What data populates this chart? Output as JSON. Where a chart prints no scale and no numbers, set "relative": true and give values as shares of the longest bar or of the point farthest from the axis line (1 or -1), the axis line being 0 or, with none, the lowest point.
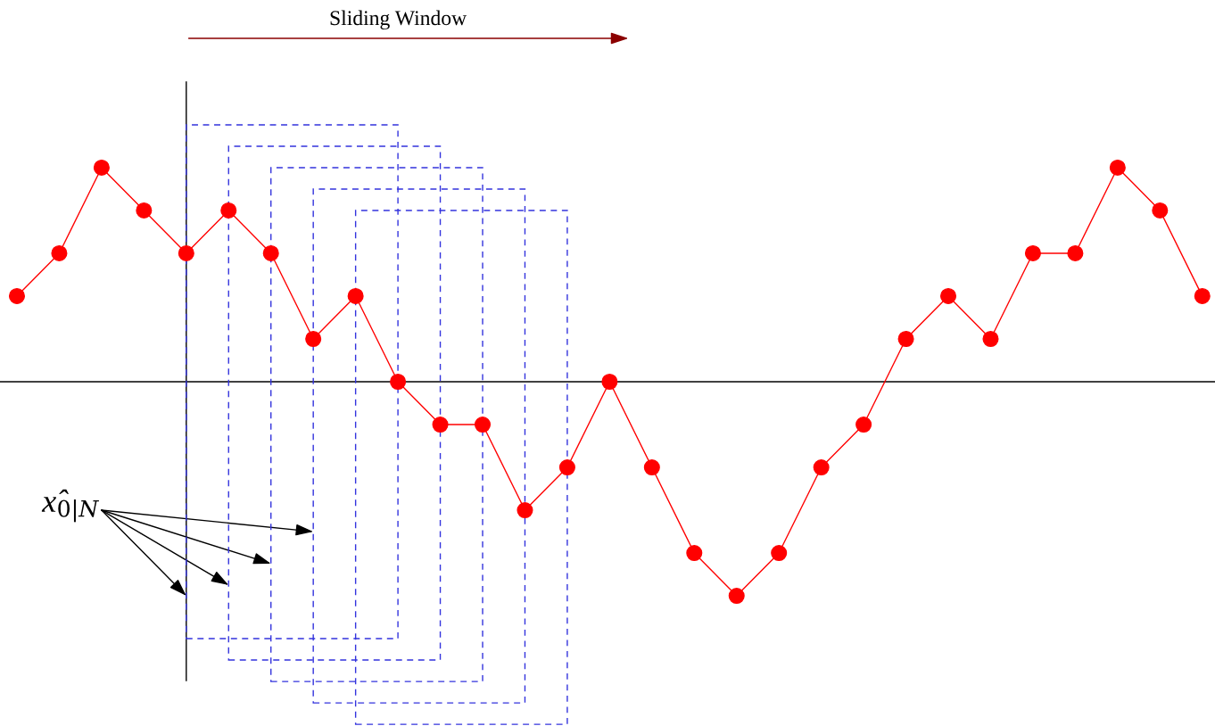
{
  "chart_data": {
    "type": "line",
    "relative": true,
    "marker": "circle",
    "line_style": "solid",
    "categories": [
      null,
      null,
      null,
      null,
      null,
      null,
      null,
      null,
      null,
      null,
      null,
      null,
      null,
      null,
      null,
      null,
      null,
      null,
      null,
      null,
      null,
      null,
      null,
      null,
      null,
      null,
      null,
      null,
      null
    ],
    "series": [
      {
        "color": "#ff0000",
        "values": [
          0.4,
          0.6,
          1,
          0.8,
          0.6,
          0.8,
          0.6,
          0.2,
          0.4,
          0,
          -0.2,
          -0.2,
          -0.6,
          -0.4,
          0,
          -0.4,
          -0.8,
          -1,
          -0.8,
          -0.4,
          -0.2,
          0.2,
          0.4,
          0.2,
          0.6,
          0.6,
          1,
          0.8,
          0.4
        ]
      }
    ],
    "annotations": [
      "Sliding Window",
      "x̂$_{0|N}$"
    ]
  }
}
